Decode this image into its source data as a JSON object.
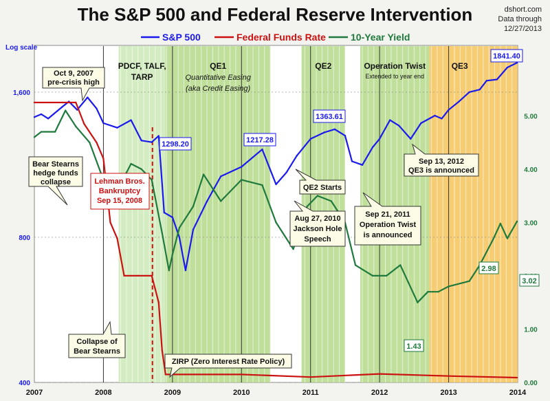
{
  "chart_data": {
    "type": "line",
    "title": "The S&P 500 and Federal Reserve Intervention",
    "source": [
      "dshort.com",
      "Data through",
      "12/27/2013"
    ],
    "scale_note": "Log scale",
    "legend": [
      "S&P 500",
      "Federal Funds Rate",
      "10-Year Yield"
    ],
    "colors": {
      "sp500": "#1a1aee",
      "fed": "#cc1111",
      "yield": "#1e7a3c",
      "qe_green": "#b4d98a",
      "qe3_orange": "#f6c45a",
      "pdcf_green": "#cde9b6"
    },
    "x_ticks": [
      "2007",
      "2008",
      "2009",
      "2010",
      "2011",
      "2012",
      "2013",
      "2014"
    ],
    "x_range": [
      2007.0,
      2014.0
    ],
    "y_left": {
      "scale": "log",
      "range": [
        400,
        2000
      ],
      "ticks": [
        {
          "v": 400,
          "label": "400"
        },
        {
          "v": 800,
          "label": "800"
        },
        {
          "v": 1600,
          "label": "1,600"
        }
      ]
    },
    "y_right": {
      "range": [
        0,
        6.32
      ],
      "ticks": [
        {
          "v": 0,
          "label": "0.00"
        },
        {
          "v": 1,
          "label": "1.00"
        },
        {
          "v": 2,
          "label": "2.00"
        },
        {
          "v": 3,
          "label": "3.00"
        },
        {
          "v": 4,
          "label": "4.00"
        },
        {
          "v": 5,
          "label": "5.00"
        }
      ]
    },
    "series": [
      {
        "name": "S&P 500",
        "key": "sp500",
        "x": [
          2007.0,
          2007.1,
          2007.2,
          2007.4,
          2007.5,
          2007.62,
          2007.77,
          2007.9,
          2008.0,
          2008.2,
          2008.4,
          2008.55,
          2008.7,
          2008.8,
          2008.88,
          2009.0,
          2009.1,
          2009.19,
          2009.3,
          2009.5,
          2009.7,
          2010.0,
          2010.3,
          2010.5,
          2010.65,
          2010.8,
          2011.0,
          2011.2,
          2011.35,
          2011.5,
          2011.6,
          2011.75,
          2011.9,
          2012.0,
          2012.15,
          2012.28,
          2012.45,
          2012.6,
          2012.8,
          2012.9,
          2013.0,
          2013.15,
          2013.3,
          2013.45,
          2013.55,
          2013.7,
          2013.85,
          2013.99
        ],
        "y": [
          1420,
          1440,
          1410,
          1490,
          1530,
          1470,
          1560,
          1480,
          1380,
          1350,
          1400,
          1270,
          1260,
          1298,
          900,
          880,
          800,
          683,
          830,
          950,
          1070,
          1120,
          1217,
          1030,
          1090,
          1180,
          1280,
          1320,
          1340,
          1300,
          1150,
          1130,
          1230,
          1280,
          1400,
          1363,
          1280,
          1380,
          1430,
          1410,
          1470,
          1530,
          1600,
          1620,
          1690,
          1700,
          1800,
          1841
        ]
      },
      {
        "name": "Federal Funds Rate",
        "key": "fed",
        "x": [
          2007.0,
          2007.6,
          2007.72,
          2007.9,
          2008.0,
          2008.1,
          2008.2,
          2008.3,
          2008.5,
          2008.7,
          2008.8,
          2008.85,
          2008.9,
          2009.0,
          2010.0,
          2011.0,
          2012.0,
          2013.0,
          2013.99
        ],
        "y": [
          5.25,
          5.25,
          4.85,
          4.5,
          4.2,
          3.0,
          2.7,
          2.0,
          2.0,
          2.0,
          1.5,
          0.6,
          0.15,
          0.15,
          0.15,
          0.1,
          0.16,
          0.12,
          0.09
        ]
      },
      {
        "name": "10-Year Yield",
        "key": "yield",
        "x": [
          2007.0,
          2007.1,
          2007.3,
          2007.45,
          2007.6,
          2007.8,
          2008.0,
          2008.2,
          2008.4,
          2008.55,
          2008.7,
          2008.85,
          2008.95,
          2009.0,
          2009.1,
          2009.3,
          2009.45,
          2009.7,
          2010.0,
          2010.3,
          2010.5,
          2010.75,
          2010.95,
          2011.1,
          2011.3,
          2011.5,
          2011.65,
          2011.9,
          2012.1,
          2012.3,
          2012.55,
          2012.7,
          2012.85,
          2013.0,
          2013.3,
          2013.45,
          2013.65,
          2013.75,
          2013.85,
          2013.99
        ],
        "y": [
          4.6,
          4.7,
          4.7,
          5.1,
          4.8,
          4.5,
          3.8,
          3.6,
          4.1,
          4.0,
          3.8,
          2.8,
          2.1,
          2.4,
          2.9,
          3.3,
          3.9,
          3.4,
          3.8,
          3.7,
          3.0,
          2.5,
          3.3,
          3.5,
          3.4,
          3.0,
          2.2,
          2.0,
          2.0,
          2.2,
          1.5,
          1.7,
          1.7,
          1.8,
          1.9,
          2.2,
          2.7,
          2.98,
          2.7,
          3.02
        ]
      }
    ],
    "regions": [
      {
        "label": "PDCF, TALF, TARP, etc.",
        "x0": 2008.22,
        "x1": 2008.9,
        "color": "pdcf_green"
      },
      {
        "label": "QE1",
        "sub": "Quantitative Easing (aka Credit Easing)",
        "x0": 2008.9,
        "x1": 2010.42,
        "color": "qe_green"
      },
      {
        "label": "QE2",
        "x0": 2010.87,
        "x1": 2011.5,
        "color": "qe_green"
      },
      {
        "label": "Operation Twist",
        "sub": "Extended to year end",
        "x0": 2011.72,
        "x1": 2012.72,
        "color": "qe_green"
      },
      {
        "label": "QE3",
        "x0": 2012.72,
        "x1": 2014.0,
        "color": "qe3_orange"
      }
    ],
    "labels": {
      "sp_peak_start": "1298.20",
      "sp_2010": "1217.28",
      "sp_2011": "1363.61",
      "sp_end": "1841.40",
      "yield_2013": "2.98",
      "yield_end": "3.02",
      "yield_low": "1.43"
    },
    "annotations": {
      "oct2007": [
        "Oct 9, 2007",
        "pre-crisis high"
      ],
      "bear_hedge": [
        "Bear Stearns",
        "hedge funds",
        "collapse"
      ],
      "lehman": [
        "Lehman Bros.",
        "Bankruptcy",
        "Sep 15, 2008"
      ],
      "bear_collapse": [
        "Collapse of",
        "Bear Stearns"
      ],
      "zirp": "ZIRP (Zero Interest Rate Policy)",
      "qe2_starts": "QE2 Starts",
      "jackson": [
        "Aug 27, 2010",
        "Jackson Hole",
        "Speech"
      ],
      "twist": [
        "Sep 21, 2011",
        "Operation Twist",
        "is announced"
      ],
      "qe3_ann": [
        "Sep 13, 2012",
        "QE3 is announced"
      ]
    }
  }
}
